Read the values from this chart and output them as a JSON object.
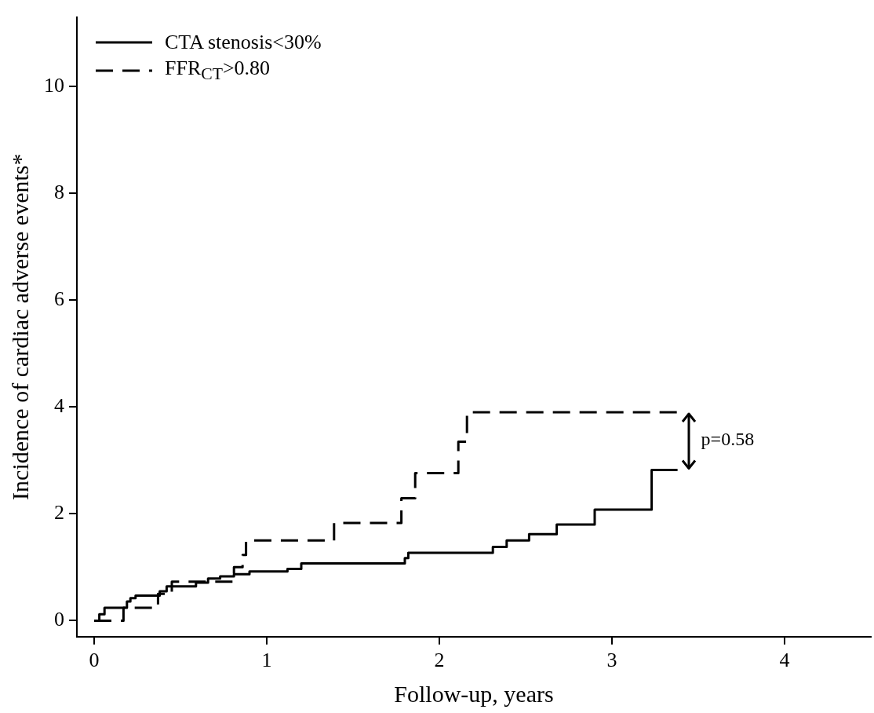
{
  "chart_data": {
    "type": "step",
    "xlabel": "Follow-up, years",
    "ylabel": "Incidence of cardiac adverse events*",
    "xlim": [
      -0.1,
      4.5
    ],
    "xticks": [
      0,
      1,
      2,
      3,
      4
    ],
    "ylim": [
      -0.3,
      11.3
    ],
    "yticks": [
      0,
      2,
      4,
      6,
      8,
      10
    ],
    "grid": false,
    "legend": "top left",
    "marker": "none",
    "series": [
      {
        "name": "CTA stenosis<30%",
        "color": "#000000",
        "line_style": "solid",
        "x": [
          0,
          0.03,
          0.06,
          0.19,
          0.21,
          0.24,
          0.38,
          0.42,
          0.59,
          0.66,
          0.73,
          0.81,
          0.9,
          1.12,
          1.2,
          1.8,
          1.82,
          2.31,
          2.39,
          2.52,
          2.68,
          2.9,
          3.23,
          3.38
        ],
        "values": [
          0,
          0.12,
          0.24,
          0.36,
          0.42,
          0.47,
          0.55,
          0.64,
          0.71,
          0.79,
          0.83,
          0.87,
          0.92,
          0.97,
          1.07,
          1.17,
          1.27,
          1.38,
          1.5,
          1.62,
          1.8,
          2.08,
          2.82,
          2.82
        ]
      },
      {
        "name": "FFR$_{CT}$>0.80",
        "color": "#000000",
        "line_style": "dashed",
        "x": [
          0,
          0.17,
          0.37,
          0.45,
          0.81,
          0.86,
          0.88,
          1.39,
          1.78,
          1.86,
          2.11,
          2.16,
          3.38
        ],
        "values": [
          0,
          0.24,
          0.5,
          0.73,
          1.0,
          1.23,
          1.5,
          1.83,
          2.29,
          2.76,
          3.35,
          3.9,
          3.9
        ]
      }
    ],
    "annotations": [
      "p=0.58"
    ]
  }
}
